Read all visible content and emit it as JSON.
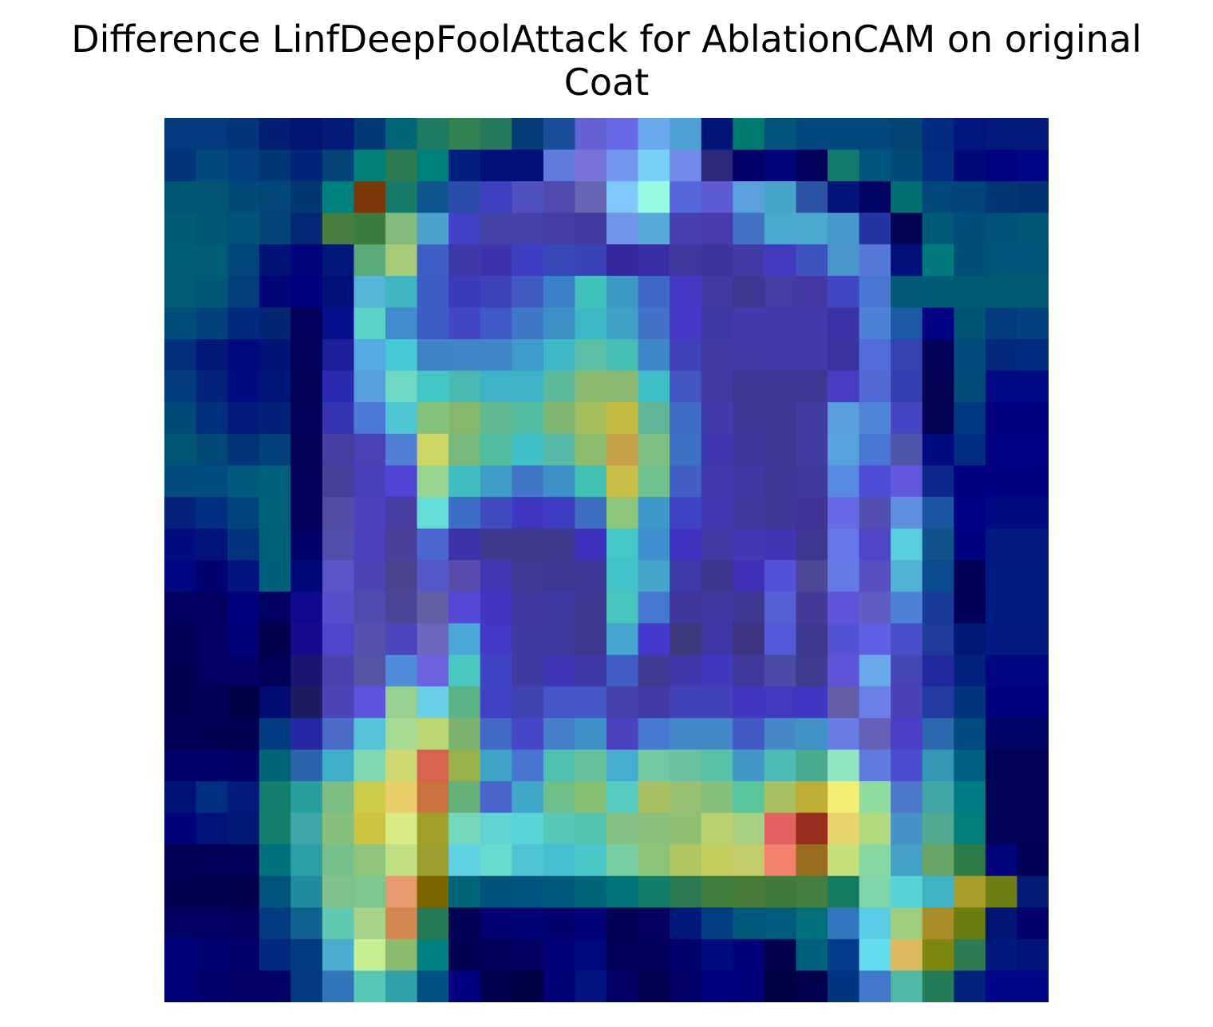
{
  "chart_data": {
    "type": "heatmap",
    "title_line1": "Difference LinfDeepFoolAttack for AblationCAM on original",
    "title_line2": "Coat",
    "rows": 28,
    "cols": 28,
    "axes_visible": false,
    "colors": [
      "#02397f",
      "#02397f",
      "#02357a",
      "#021f72",
      "#011570",
      "#031a79",
      "#023a79",
      "#006574",
      "#1e7a62",
      "#308251",
      "#26795c",
      "#033b76",
      "#1b4f9a",
      "#6562d8",
      "#6868e6",
      "#6aa8ec",
      "#4fa2d6",
      "#001576",
      "#017a70",
      "#025578",
      "#02477d",
      "#02477d",
      "#02477d",
      "#034476",
      "#022b7f",
      "#01167f",
      "#011a7c",
      "#011a7c",
      "#02357a",
      "#02497d",
      "#023f7f",
      "#023776",
      "#02257a",
      "#044477",
      "#03807a",
      "#2e7a50",
      "#00807c",
      "#011f7c",
      "#010f78",
      "#010f78",
      "#5e7cdb",
      "#7a73d9",
      "#7396ee",
      "#78d1f5",
      "#718bea",
      "#2b297c",
      "#020069",
      "#010378",
      "#01015b",
      "#117c6e",
      "#00557c",
      "#014b7b",
      "#022d80",
      "#010979",
      "#020280",
      "#010784",
      "#015676",
      "#025575",
      "#024b78",
      "#024777",
      "#033771",
      "#00807c",
      "#7d390a",
      "#167b69",
      "#105590",
      "#2b4ca8",
      "#403fc1",
      "#5150c1",
      "#514aad",
      "#6567b5",
      "#82c9fb",
      "#96fbe1",
      "#5567db",
      "#5d5ad6",
      "#5b9fdc",
      "#49a5c7",
      "#2a54a3",
      "#03157a",
      "#010464",
      "#017072",
      "#02477c",
      "#02457a",
      "#023674",
      "#023274",
      "#005c72",
      "#005774",
      "#015278",
      "#024478",
      "#032873",
      "#477e3e",
      "#3b7b3d",
      "#83bb7b",
      "#4ba3cc",
      "#4240c6",
      "#4441a7",
      "#4442a6",
      "#433ea6",
      "#443ba1",
      "#7094e7",
      "#57a8d8",
      "#453fb0",
      "#473bad",
      "#4271c6",
      "#48a9cf",
      "#4aa9cb",
      "#4697cc",
      "#2434a3",
      "#010553",
      "#015b78",
      "#014e7b",
      "#005377",
      "#005778",
      "#005f75",
      "#005d75",
      "#02477c",
      "#011274",
      "#02027c",
      "#011779",
      "#5bac7d",
      "#a6ca75",
      "#3f5fc6",
      "#3d38a8",
      "#3d32ab",
      "#3e3dc4",
      "#3749b7",
      "#3943b7",
      "#36299f",
      "#382da4",
      "#3e3a9d",
      "#3e359c",
      "#423ba6",
      "#433ac2",
      "#3d52be",
      "#4795c9",
      "#5779d8",
      "#010f7a",
      "#007a7c",
      "#004f79",
      "#00557a",
      "#005479",
      "#015d75",
      "#005877",
      "#013f7c",
      "#010578",
      "#000182",
      "#010f79",
      "#55b6d8",
      "#41b6c2",
      "#3d5dc4",
      "#3d3bb7",
      "#3e42ba",
      "#3f5bc2",
      "#3c81c8",
      "#3fc3bb",
      "#3d98c6",
      "#3f68c6",
      "#4437c6",
      "#433ba1",
      "#3e3890",
      "#433ea1",
      "#4539a6",
      "#4047c1",
      "#4b77d4",
      "#02597a",
      "#005c75",
      "#005a72",
      "#005a72",
      "#005a72",
      "#004d7c",
      "#02427c",
      "#01297b",
      "#022672",
      "#000159",
      "#060e8c",
      "#5bd3c9",
      "#428ccd",
      "#3d5dc4",
      "#4347c4",
      "#3e5ac6",
      "#3f79c6",
      "#3e8fc6",
      "#3db9c6",
      "#3da1c6",
      "#4273c8",
      "#4538c9",
      "#3d39a5",
      "#433aad",
      "#4339aa",
      "#4339ad",
      "#3b33a9",
      "#4c83d7",
      "#1d5aa5",
      "#010283",
      "#015376",
      "#023a7e",
      "#014181",
      "#032f7c",
      "#011876",
      "#010980",
      "#011277",
      "#000159",
      "#1e1e9b",
      "#56aae2",
      "#45cad6",
      "#3f82c6",
      "#3f86c6",
      "#3f87c6",
      "#3d9ac9",
      "#3db8c6",
      "#5cbea5",
      "#45bfb1",
      "#3d89c8",
      "#413fba",
      "#423ca4",
      "#433ba8",
      "#4339aa",
      "#4339aa",
      "#3a349f",
      "#506dd9",
      "#3642b2",
      "#010158",
      "#024c7d",
      "#02297c",
      "#022a7f",
      "#023c7f",
      "#02237a",
      "#010c82",
      "#011777",
      "#010157",
      "#2a2bb2",
      "#55a0da",
      "#6ed9c2",
      "#45c6c6",
      "#4ab9af",
      "#3eb4c6",
      "#3fb3c6",
      "#5cba9b",
      "#8aba6e",
      "#8aba71",
      "#40bec6",
      "#4257c4",
      "#433ba1",
      "#3e3893",
      "#3e3893",
      "#3e3893",
      "#473ec4",
      "#546ad7",
      "#3440b3",
      "#020153",
      "#024c7c",
      "#010a84",
      "#010a84",
      "#004b7a",
      "#02307c",
      "#011b7b",
      "#012178",
      "#010159",
      "#3734b2",
      "#4d79d6",
      "#4fc6d4",
      "#83c37a",
      "#85b76c",
      "#61ba94",
      "#53bca1",
      "#7fb66f",
      "#a6bd5e",
      "#c2bb3f",
      "#62b596",
      "#3f6cc6",
      "#413bad",
      "#3e3897",
      "#3e3895",
      "#423ea1",
      "#5a9ede",
      "#4e85d5",
      "#4845c2",
      "#010355",
      "#013980",
      "#010083",
      "#010083",
      "#015474",
      "#024977",
      "#023678",
      "#014079",
      "#010158",
      "#463da1",
      "#4a42b6",
      "#5080d6",
      "#cdd565",
      "#77b97b",
      "#52bba0",
      "#41c1c6",
      "#58bba7",
      "#8cbd6f",
      "#c4a248",
      "#7fbf83",
      "#3d71c2",
      "#4236b0",
      "#3e3899",
      "#3e3994",
      "#423ea1",
      "#56a2dc",
      "#4977d6",
      "#5155a9",
      "#010a80",
      "#012d80",
      "#010181",
      "#010181",
      "#024c7f",
      "#024d7f",
      "#005a7b",
      "#005f7a",
      "#010159",
      "#453f98",
      "#4740bb",
      "#4f44d6",
      "#98d590",
      "#41bdc2",
      "#3e9cc6",
      "#3f77c6",
      "#3e91c6",
      "#42c2b1",
      "#c7bf47",
      "#6fc18d",
      "#425fc6",
      "#4239af",
      "#403ba4",
      "#3e3995",
      "#3e3b9c",
      "#5789e1",
      "#4e4bd6",
      "#6158de",
      "#0d288d",
      "#010083",
      "#010083",
      "#010083",
      "#03227d",
      "#013082",
      "#01457d",
      "#006178",
      "#010159",
      "#4f4ca1",
      "#4a42be",
      "#453d9f",
      "#65ddd7",
      "#3b6ec4",
      "#3f4bc0",
      "#3f37c2",
      "#3f3bc2",
      "#3d6ec2",
      "#8bc67a",
      "#3e99c8",
      "#3f43c4",
      "#4039b1",
      "#3e3b9d",
      "#3e3995",
      "#403597",
      "#6769e5",
      "#534fb0",
      "#5f8fdd",
      "#1b55a1",
      "#010181",
      "#010a81",
      "#010a81",
      "#010c81",
      "#011279",
      "#01347d",
      "#006178",
      "#000169",
      "#4f4fa9",
      "#4a42bd",
      "#4a4098",
      "#4a66d1",
      "#3c33ab",
      "#3e3b8f",
      "#3e3b8d",
      "#3e3a8e",
      "#3d32bd",
      "#45c6c9",
      "#3f8fce",
      "#4132c1",
      "#413ca4",
      "#4239b4",
      "#4336b4",
      "#3e3893",
      "#6776e8",
      "#4e46c7",
      "#58cfdd",
      "#10538c",
      "#000181",
      "#001a81",
      "#001a81",
      "#010582",
      "#010071",
      "#011481",
      "#005e78",
      "#000776",
      "#5955c9",
      "#4c46b5",
      "#4b448e",
      "#5556c8",
      "#584dad",
      "#4138b4",
      "#3e3b94",
      "#3e3997",
      "#403897",
      "#43c3c9",
      "#45a3c9",
      "#3e3baa",
      "#3e378e",
      "#3f30b6",
      "#5552d9",
      "#4d4895",
      "#6478e6",
      "#574ec2",
      "#53b2d4",
      "#0a4a8f",
      "#010056",
      "#011d81",
      "#011d81",
      "#010061",
      "#01005f",
      "#010180",
      "#000061",
      "#0f0a8b",
      "#5450cc",
      "#4f4cb0",
      "#4b4698",
      "#6160a2",
      "#5448d6",
      "#4236c2",
      "#403a9f",
      "#3e3ba3",
      "#3e3890",
      "#49c5c0",
      "#4579d0",
      "#3f379b",
      "#3f3aa1",
      "#3e3a94",
      "#5562d5",
      "#433b95",
      "#5f55d8",
      "#5f5cc3",
      "#4f82d6",
      "#183b97",
      "#010057",
      "#011c81",
      "#011c81",
      "#000055",
      "#010064",
      "#010077",
      "#01004c",
      "#140c8c",
      "#4c46cb",
      "#5552af",
      "#4c46be",
      "#6b67bd",
      "#4aa6d4",
      "#4239c6",
      "#3e3ba3",
      "#3e3ba3",
      "#3e3890",
      "#47a5cf",
      "#4238cb",
      "#3d3a7c",
      "#3e37a8",
      "#3c3481",
      "#5458d6",
      "#3e3890",
      "#5652d4",
      "#615fe6",
      "#4a4ec9",
      "#1f3b9a",
      "#011973",
      "#011b81",
      "#011b81",
      "#000052",
      "#000062",
      "#010067",
      "#000059",
      "#191772",
      "#4b43ad",
      "#5355a6",
      "#4f8cd9",
      "#6b63e0",
      "#48c8bf",
      "#4043c2",
      "#3e3ba3",
      "#3f37b6",
      "#3e3aa8",
      "#415ec7",
      "#403a92",
      "#3f39ab",
      "#3f39c0",
      "#3f3a9a",
      "#4b4ca4",
      "#3e3c8e",
      "#5d55d7",
      "#66a8e8",
      "#4545b6",
      "#2227a0",
      "#01237c",
      "#010783",
      "#010783",
      "#000052",
      "#000056",
      "#000049",
      "#010b75",
      "#1c1d5e",
      "#4b45b8",
      "#5c54dc",
      "#97d190",
      "#69d0e8",
      "#5cb486",
      "#4342c6",
      "#4242b3",
      "#4556c9",
      "#4557c6",
      "#4441aa",
      "#423aa5",
      "#4241ba",
      "#4241ba",
      "#4137c0",
      "#3f3ac0",
      "#3f38c6",
      "#645fa5",
      "#6a7fe7",
      "#4842b6",
      "#223aa2",
      "#01367c",
      "#01007c",
      "#01007c",
      "#000055",
      "#000052",
      "#000052",
      "#013c80",
      "#2727a6",
      "#4b6bc7",
      "#57c3d9",
      "#a6da93",
      "#bad774",
      "#7bb471",
      "#4169c6",
      "#4646c6",
      "#447fc8",
      "#3f90c6",
      "#4a42be",
      "#4678d0",
      "#4588c8",
      "#4588c8",
      "#4359c6",
      "#4688c8",
      "#4091c6",
      "#6b7be5",
      "#6462b9",
      "#4a3fc6",
      "#2d68af",
      "#014b81",
      "#010567",
      "#010567",
      "#000169",
      "#000169",
      "#000165",
      "#006577",
      "#2c64aa",
      "#40aec6",
      "#82d8ae",
      "#cfd870",
      "#d76350",
      "#98b14a",
      "#3fa3c6",
      "#4775d0",
      "#4dc0af",
      "#68c19d",
      "#47add0",
      "#73c7a3",
      "#6ac1a0",
      "#57c1a8",
      "#4198c6",
      "#4bbdb5",
      "#48ab8f",
      "#90e5c0",
      "#5e7be0",
      "#4d4bd0",
      "#3498b5",
      "#005e81",
      "#010257",
      "#010257",
      "#011277",
      "#012f7f",
      "#011a7c",
      "#127e6b",
      "#289f9e",
      "#7cbe82",
      "#cbcc49",
      "#e9cd68",
      "#c9743f",
      "#66b07a",
      "#4765cb",
      "#3fa8c6",
      "#6fbf8b",
      "#88c073",
      "#57cdc2",
      "#a7c062",
      "#97c072",
      "#84bf7b",
      "#5ac59c",
      "#a8c062",
      "#bfae35",
      "#f3ee72",
      "#8fdc9f",
      "#4b79c8",
      "#41a6a5",
      "#017b82",
      "#010156",
      "#010156",
      "#01017b",
      "#011379",
      "#011a76",
      "#14806b",
      "#41a6a5",
      "#86c07b",
      "#cac441",
      "#d9eb86",
      "#a09f26",
      "#74d7b9",
      "#5fd4d2",
      "#58d4d6",
      "#59c7b8",
      "#52c2ac",
      "#87c083",
      "#88c17d",
      "#8fc075",
      "#b9d170",
      "#a4d282",
      "#e16261",
      "#982c1f",
      "#e7d46a",
      "#b2d97e",
      "#4592c6",
      "#50a98f",
      "#01807b",
      "#010156",
      "#010156",
      "#000055",
      "#000059",
      "#000059",
      "#00727b",
      "#2aa0a4",
      "#75c08b",
      "#8fc57a",
      "#c1e082",
      "#9b9f31",
      "#5fd3e2",
      "#65dccd",
      "#4fc6d4",
      "#45c0d0",
      "#4ac7c7",
      "#77cfa1",
      "#8ac47a",
      "#b1c561",
      "#c5cd5e",
      "#c3cd6a",
      "#f2816e",
      "#996d1f",
      "#c5e17a",
      "#86d8a3",
      "#44a0c6",
      "#68a567",
      "#2d7b47",
      "#000379",
      "#010056",
      "#000050",
      "#000051",
      "#00004b",
      "#01537e",
      "#208c9e",
      "#81c18f",
      "#7dc78e",
      "#e79b6c",
      "#7b6602",
      "#006677",
      "#00527a",
      "#00547f",
      "#005a7b",
      "#006576",
      "#007478",
      "#127d68",
      "#2b7a50",
      "#407c3b",
      "#487b37",
      "#3e7b38",
      "#437e3f",
      "#157a62",
      "#80d4aa",
      "#56d4d5",
      "#40b3c3",
      "#a89d29",
      "#6e7d14",
      "#011b78",
      "#010063",
      "#010063",
      "#01005f",
      "#023a7f",
      "#106390",
      "#61c8b1",
      "#a7d28a",
      "#d48851",
      "#277b54",
      "#000055",
      "#010072",
      "#010176",
      "#01006e",
      "#010078",
      "#000055",
      "#030062",
      "#02197c",
      "#024083",
      "#005a7b",
      "#005b7d",
      "#01707a",
      "#3277bd",
      "#59cce5",
      "#9fcd7f",
      "#a98d28",
      "#6b7c12",
      "#011674",
      "#00006e",
      "#01017c",
      "#010073",
      "#01006a",
      "#01287f",
      "#013a7e",
      "#4aaecc",
      "#c8ee94",
      "#8bbc6d",
      "#008081",
      "#000052",
      "#000058",
      "#01015f",
      "#010079",
      "#010981",
      "#000058",
      "#00005c",
      "#000069",
      "#010b80",
      "#010079",
      "#00004d",
      "#00617f",
      "#023a8d",
      "#63ddee",
      "#ddb85e",
      "#808710",
      "#2d7b50",
      "#01187e",
      "#00137c",
      "#010077",
      "#01006b",
      "#010067",
      "#010065",
      "#023980",
      "#3375b9",
      "#56c8b8",
      "#30a3a9",
      "#005081",
      "#010083",
      "#000052",
      "#000047",
      "#010075",
      "#021380",
      "#010066",
      "#00004f",
      "#000066",
      "#01017f",
      "#010079",
      "#000045",
      "#01004f",
      "#02357f",
      "#4377cc",
      "#4fb9a5",
      "#227c58",
      "#01227c",
      "#010788",
      "#010788"
    ]
  }
}
